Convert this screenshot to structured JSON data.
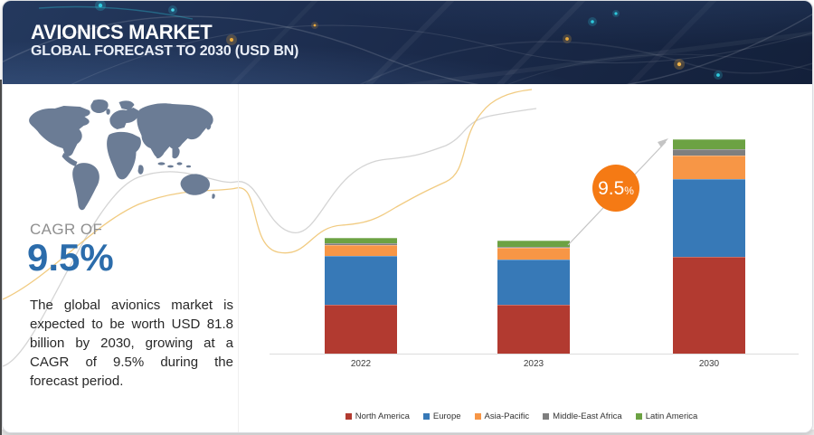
{
  "header": {
    "title": "AVIONICS MARKET",
    "subtitle": "GLOBAL FORECAST TO 2030 (USD BN)"
  },
  "left_panel": {
    "cagr_label": "CAGR OF",
    "cagr_value": "9.5%",
    "description": "The global avionics market is expected to be worth USD 81.8 billion by 2030, growing at a CAGR of 9.5% during the forecast period."
  },
  "badge": {
    "value": "9.5",
    "unit": "%"
  },
  "chart_data": {
    "type": "bar",
    "stacked": true,
    "unit": "USD BN",
    "categories": [
      "2022",
      "2023",
      "2030"
    ],
    "series": [
      {
        "name": "North America",
        "color": "#b23a30",
        "values": [
          18.6,
          18.6,
          36.9
        ]
      },
      {
        "name": "Europe",
        "color": "#3779b7",
        "values": [
          18.6,
          17.2,
          29.6
        ]
      },
      {
        "name": "Asia-Pacific",
        "color": "#f79646",
        "values": [
          4.0,
          4.4,
          9.1
        ]
      },
      {
        "name": "Middle-East Africa",
        "color": "#7f7f7f",
        "values": [
          0.7,
          0.5,
          2.4
        ]
      },
      {
        "name": "Latin America",
        "color": "#6ca243",
        "values": [
          2.2,
          2.2,
          3.8
        ]
      }
    ],
    "totals": [
      44.1,
      42.9,
      81.8
    ],
    "ylim": [
      0,
      85
    ],
    "grid": false,
    "legend_position": "bottom",
    "annotation": {
      "cagr_badge": "9.5%",
      "arrow": "from 2023 bar top to 2030 bar top"
    }
  },
  "colors": {
    "header_bg": "#1c2c4d",
    "accent_cyan": "#2ec9dd",
    "accent_amber": "#e8a93c",
    "map_fill": "#6b7c95",
    "curve_gray": "#cfcfcf",
    "curve_yellow": "#f0c573",
    "cagr_blue": "#2b6cab",
    "badge_orange": "#f57a14",
    "axis_line": "#dcdcdc"
  }
}
